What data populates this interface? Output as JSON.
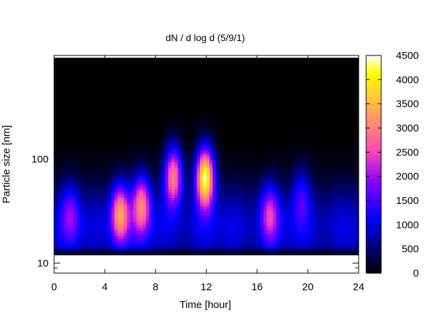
{
  "chart_data": {
    "type": "heatmap",
    "title": "dN / d log d (5/9/1)",
    "xlabel": "Time [hour]",
    "ylabel": "Particle size [nm]",
    "x_ticks": [
      0,
      4,
      8,
      12,
      16,
      20,
      24
    ],
    "x_range": [
      0,
      24
    ],
    "y_scale": "log",
    "y_range": [
      8,
      1000
    ],
    "y_ticks": [
      10,
      100
    ],
    "data_size_range_nm": [
      12,
      950
    ],
    "colorbar": {
      "range": [
        0,
        4500
      ],
      "ticks": [
        0,
        500,
        1000,
        1500,
        2000,
        2500,
        3000,
        3500,
        4000,
        4500
      ],
      "palette": "gnuplot-hot: black-purple-blue-violet-magenta-red-orange-yellow"
    },
    "background_level": 950,
    "background_peak_size_nm": 22,
    "events": [
      {
        "time": 1.3,
        "size_nm": 30,
        "peak": 1450
      },
      {
        "time": 5.2,
        "size_nm": 30,
        "peak": 3050
      },
      {
        "time": 6.9,
        "size_nm": 37,
        "peak": 2750
      },
      {
        "time": 9.4,
        "size_nm": 70,
        "peak": 3200
      },
      {
        "time": 11.9,
        "size_nm": 68,
        "peak": 4500
      },
      {
        "time": 17.0,
        "size_nm": 30,
        "peak": 2000
      },
      {
        "time": 19.5,
        "size_nm": 45,
        "peak": 1300
      }
    ]
  }
}
